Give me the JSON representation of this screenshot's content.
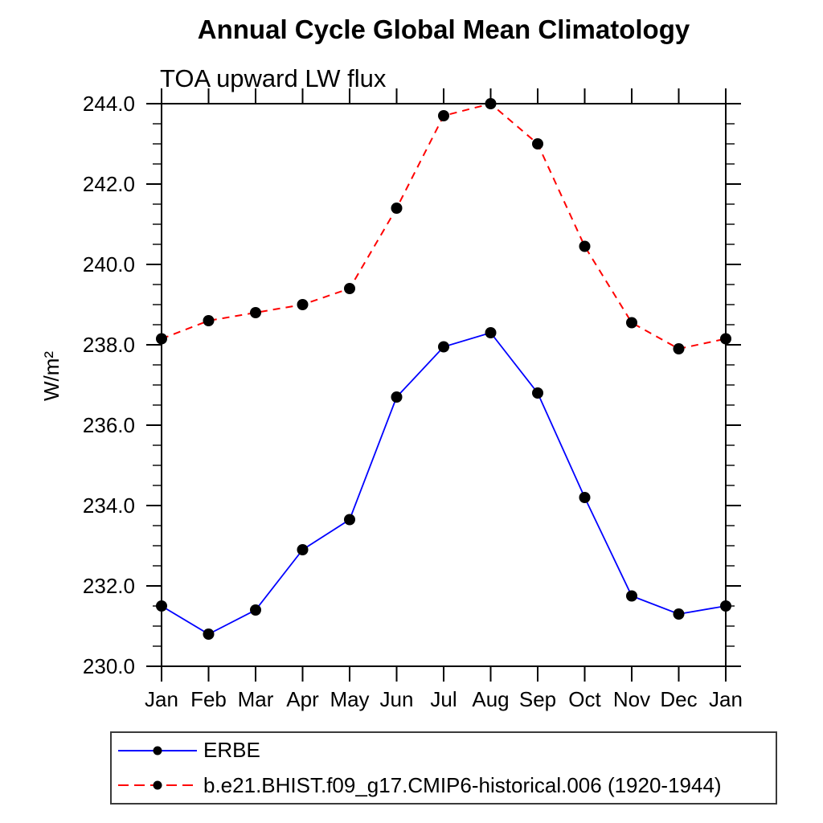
{
  "chart_data": {
    "type": "line",
    "title": "Annual Cycle Global Mean Climatology",
    "subtitle": "TOA upward LW flux",
    "ylabel": "W/m²",
    "xlabel": "",
    "ylim": [
      230.0,
      244.0
    ],
    "ytick_major_step": 2.0,
    "ytick_minor_step": 0.5,
    "ytick_labels": [
      "230.0",
      "232.0",
      "234.0",
      "236.0",
      "238.0",
      "240.0",
      "242.0",
      "244.0"
    ],
    "categories": [
      "Jan",
      "Feb",
      "Mar",
      "Apr",
      "May",
      "Jun",
      "Jul",
      "Aug",
      "Sep",
      "Oct",
      "Nov",
      "Dec",
      "Jan"
    ],
    "grid": false,
    "legend_position": "bottom-left box",
    "frame_color": "#000000",
    "marker": "filled-circle",
    "marker_color": "#000000",
    "series": [
      {
        "name": "ERBE",
        "color": "#0000ff",
        "line_style": "solid",
        "values": [
          231.5,
          230.8,
          231.4,
          232.9,
          233.65,
          236.7,
          237.95,
          238.3,
          236.8,
          234.2,
          231.75,
          231.3,
          231.5
        ]
      },
      {
        "name": "b.e21.BHIST.f09_g17.CMIP6-historical.006 (1920-1944)",
        "color": "#ff0000",
        "line_style": "dashed",
        "values": [
          238.15,
          238.6,
          238.8,
          239.0,
          239.4,
          241.4,
          243.7,
          244.0,
          243.0,
          240.45,
          238.55,
          237.9,
          238.15
        ]
      }
    ]
  }
}
